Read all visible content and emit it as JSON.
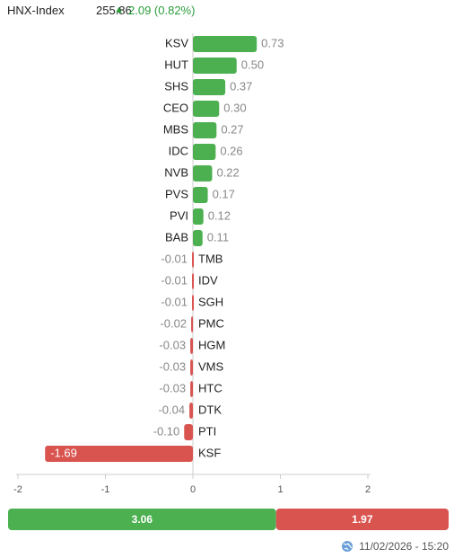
{
  "header": {
    "index": "HNX-Index",
    "value": "255.86",
    "change": "2.09 (0.82%)"
  },
  "chart_data": {
    "type": "bar",
    "orientation": "horizontal",
    "categories": [
      "KSV",
      "HUT",
      "SHS",
      "CEO",
      "MBS",
      "IDC",
      "NVB",
      "PVS",
      "PVI",
      "BAB",
      "TMB",
      "IDV",
      "SGH",
      "PMC",
      "HGM",
      "VMS",
      "HTC",
      "DTK",
      "PTI",
      "KSF"
    ],
    "values": [
      0.73,
      0.5,
      0.37,
      0.3,
      0.27,
      0.26,
      0.22,
      0.17,
      0.12,
      0.11,
      -0.01,
      -0.01,
      -0.01,
      -0.02,
      -0.03,
      -0.03,
      -0.03,
      -0.04,
      -0.1,
      -1.69
    ],
    "value_labels": [
      "0.73",
      "0.50",
      "0.37",
      "0.30",
      "0.27",
      "0.26",
      "0.22",
      "0.17",
      "0.12",
      "0.11",
      "-0.01",
      "-0.01",
      "-0.01",
      "-0.02",
      "-0.03",
      "-0.03",
      "-0.03",
      "-0.04",
      "-0.10",
      "-1.69"
    ],
    "positive_color": "#4caf50",
    "negative_color": "#d9534f",
    "xlim": [
      -2,
      2
    ],
    "xticks": [
      -2,
      -1,
      0,
      1,
      2
    ]
  },
  "summary": {
    "values": [
      3.06,
      1.97
    ],
    "colors": [
      "#4caf50",
      "#d9534f"
    ]
  },
  "timestamp": "11/02/2026 - 15:20"
}
